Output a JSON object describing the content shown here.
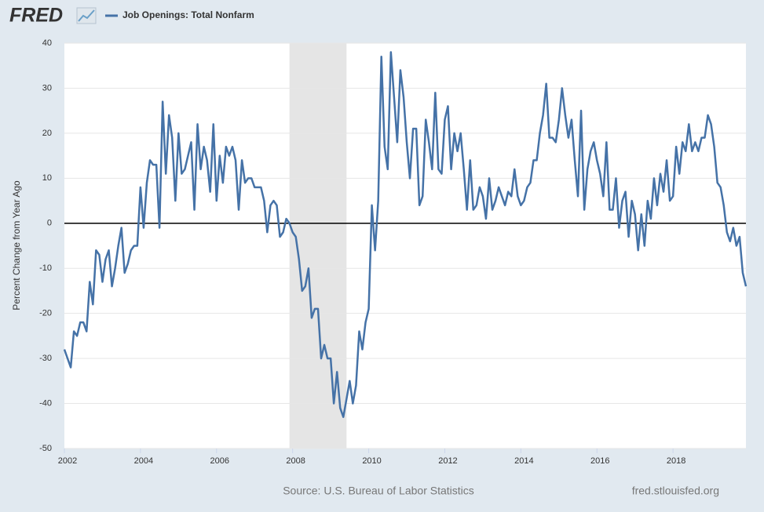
{
  "chart_data": {
    "type": "line",
    "logo": "FRED",
    "ylabel": "Percent Change from Year Ago",
    "source": "Source: U.S. Bureau of Labor Statistics",
    "site": "fred.stlouisfed.org",
    "xlim": [
      2002,
      2019.917
    ],
    "xticks": [
      2002,
      2004,
      2006,
      2008,
      2010,
      2012,
      2014,
      2016,
      2018
    ],
    "ylim": [
      -50,
      40
    ],
    "yticks": [
      -50,
      -40,
      -30,
      -20,
      -10,
      0,
      10,
      20,
      30,
      40
    ],
    "grid": true,
    "zero_line": true,
    "recessions": [
      {
        "start": 2007.917,
        "end": 2009.417
      }
    ],
    "x": [
      2002,
      2002.083,
      2002.167,
      2002.25,
      2002.333,
      2002.417,
      2002.5,
      2002.583,
      2002.667,
      2002.75,
      2002.833,
      2002.917,
      2003,
      2003.083,
      2003.167,
      2003.25,
      2003.333,
      2003.417,
      2003.5,
      2003.583,
      2003.667,
      2003.75,
      2003.833,
      2003.917,
      2004,
      2004.083,
      2004.167,
      2004.25,
      2004.333,
      2004.417,
      2004.5,
      2004.583,
      2004.667,
      2004.75,
      2004.833,
      2004.917,
      2005,
      2005.083,
      2005.167,
      2005.25,
      2005.333,
      2005.417,
      2005.5,
      2005.583,
      2005.667,
      2005.75,
      2005.833,
      2005.917,
      2006,
      2006.083,
      2006.167,
      2006.25,
      2006.333,
      2006.417,
      2006.5,
      2006.583,
      2006.667,
      2006.75,
      2006.833,
      2006.917,
      2007,
      2007.083,
      2007.167,
      2007.25,
      2007.333,
      2007.417,
      2007.5,
      2007.583,
      2007.667,
      2007.75,
      2007.833,
      2007.917,
      2008,
      2008.083,
      2008.167,
      2008.25,
      2008.333,
      2008.417,
      2008.5,
      2008.583,
      2008.667,
      2008.75,
      2008.833,
      2008.917,
      2009,
      2009.083,
      2009.167,
      2009.25,
      2009.333,
      2009.417,
      2009.5,
      2009.583,
      2009.667,
      2009.75,
      2009.833,
      2009.917,
      2010,
      2010.083,
      2010.167,
      2010.25,
      2010.333,
      2010.417,
      2010.5,
      2010.583,
      2010.667,
      2010.75,
      2010.833,
      2010.917,
      2011,
      2011.083,
      2011.167,
      2011.25,
      2011.333,
      2011.417,
      2011.5,
      2011.583,
      2011.667,
      2011.75,
      2011.833,
      2011.917,
      2012,
      2012.083,
      2012.167,
      2012.25,
      2012.333,
      2012.417,
      2012.5,
      2012.583,
      2012.667,
      2012.75,
      2012.833,
      2012.917,
      2013,
      2013.083,
      2013.167,
      2013.25,
      2013.333,
      2013.417,
      2013.5,
      2013.583,
      2013.667,
      2013.75,
      2013.833,
      2013.917,
      2014,
      2014.083,
      2014.167,
      2014.25,
      2014.333,
      2014.417,
      2014.5,
      2014.583,
      2014.667,
      2014.75,
      2014.833,
      2014.917,
      2015,
      2015.083,
      2015.167,
      2015.25,
      2015.333,
      2015.417,
      2015.5,
      2015.583,
      2015.667,
      2015.75,
      2015.833,
      2015.917,
      2016,
      2016.083,
      2016.167,
      2016.25,
      2016.333,
      2016.417,
      2016.5,
      2016.583,
      2016.667,
      2016.75,
      2016.833,
      2016.917,
      2017,
      2017.083,
      2017.167,
      2017.25,
      2017.333,
      2017.417,
      2017.5,
      2017.583,
      2017.667,
      2017.75,
      2017.833,
      2017.917,
      2018,
      2018.083,
      2018.167,
      2018.25,
      2018.333,
      2018.417,
      2018.5,
      2018.583,
      2018.667,
      2018.75,
      2018.833,
      2018.917,
      2019,
      2019.083,
      2019.167,
      2019.25,
      2019.333,
      2019.417,
      2019.5,
      2019.583,
      2019.667,
      2019.75,
      2019.833,
      2019.917
    ],
    "series": [
      {
        "name": "Job Openings: Total Nonfarm",
        "color": "#4572a7",
        "values": [
          -28,
          -30,
          -32,
          -24,
          -25,
          -22,
          -22,
          -24,
          -13,
          -18,
          -6,
          -7,
          -13,
          -8,
          -6,
          -14,
          -10,
          -5,
          -1,
          -11,
          -9,
          -6,
          -5,
          -5,
          8,
          -1,
          9,
          14,
          13,
          13,
          -1,
          27,
          11,
          24,
          19,
          5,
          20,
          11,
          12,
          15,
          18,
          3,
          22,
          12,
          17,
          14,
          7,
          22,
          5,
          15,
          9,
          17,
          15,
          17,
          14,
          3,
          14,
          9,
          10,
          10,
          8,
          8,
          8,
          5,
          -2,
          4,
          5,
          4,
          -3,
          -2,
          1,
          0,
          -2,
          -3,
          -8,
          -15,
          -14,
          -10,
          -21,
          -19,
          -19,
          -30,
          -27,
          -30,
          -30,
          -40,
          -33,
          -41,
          -43,
          -39,
          -35,
          -40,
          -36,
          -24,
          -28,
          -22,
          -19,
          4,
          -6,
          5,
          37,
          17,
          12,
          38,
          28,
          18,
          34,
          28,
          18,
          10,
          21,
          21,
          4,
          6,
          23,
          18,
          12,
          29,
          12,
          11,
          23,
          26,
          12,
          20,
          16,
          20,
          12,
          3,
          14,
          3,
          4,
          8,
          6,
          1,
          10,
          3,
          5,
          8,
          6,
          4,
          7,
          6,
          12,
          6,
          4,
          5,
          8,
          9,
          14,
          14,
          20,
          24,
          31,
          19,
          19,
          18,
          23,
          30,
          24,
          19,
          23,
          14,
          6,
          25,
          3,
          12,
          16,
          18,
          14,
          11,
          6,
          18,
          3,
          3,
          10,
          -1,
          5,
          7,
          -3,
          5,
          2,
          -6,
          2,
          -5,
          5,
          1,
          10,
          4,
          11,
          7,
          14,
          5,
          6,
          17,
          11,
          18,
          16,
          22,
          16,
          18,
          16,
          19,
          19,
          24,
          22,
          17,
          9,
          8,
          4,
          -2,
          -4,
          -1,
          -5,
          -3,
          -11,
          -14
        ]
      }
    ]
  }
}
